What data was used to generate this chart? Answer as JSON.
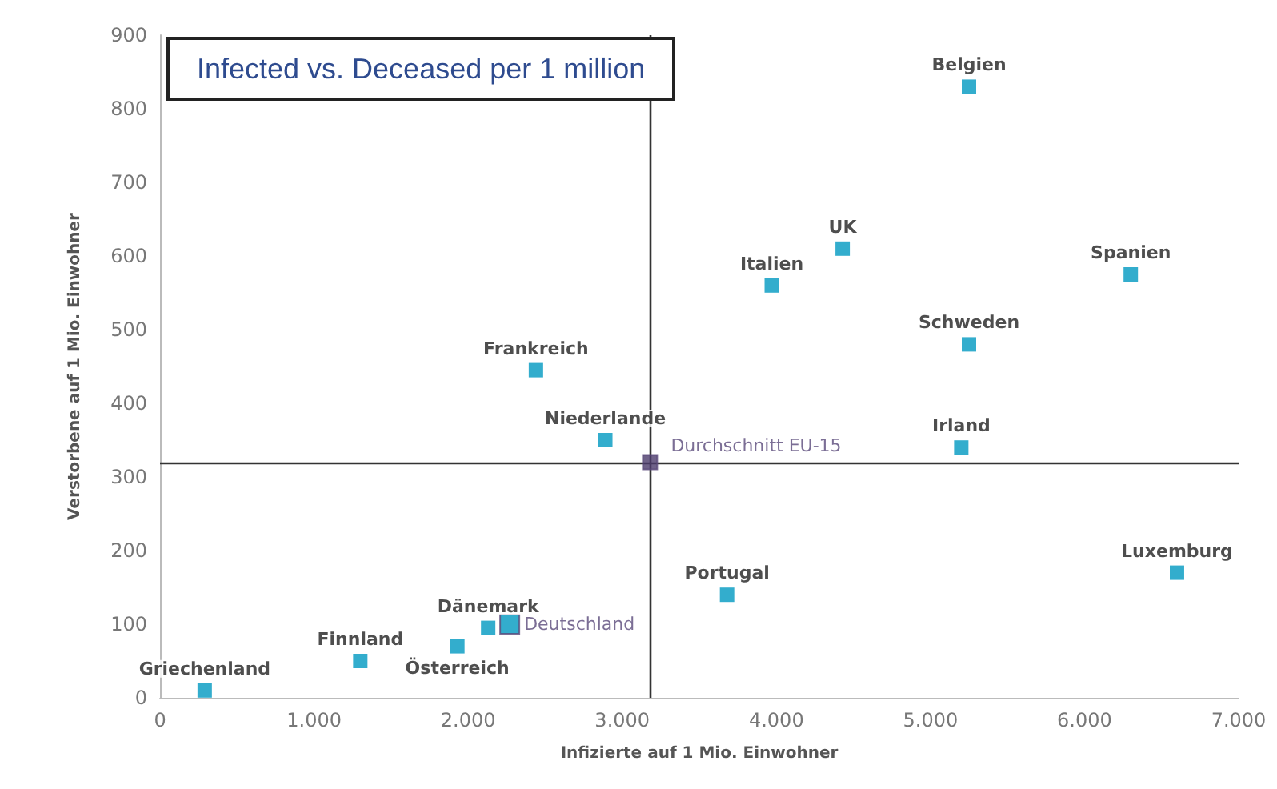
{
  "chart_data": {
    "type": "scatter",
    "title": "Infected vs. Deceased per 1 million",
    "xlabel": "Infizierte auf 1 Mio. Einwohner",
    "ylabel": "Verstorbene auf 1 Mio. Einwohner",
    "series": [
      {
        "color": "#0099c0",
        "x": [
          5250,
          4430,
          3970,
          6300,
          5250,
          2440,
          2890,
          5200,
          3680,
          6600,
          290,
          1300,
          1930,
          2130
        ],
        "values": [
          830,
          610,
          560,
          575,
          480,
          445,
          350,
          340,
          140,
          170,
          10,
          50,
          70,
          95
        ]
      },
      {
        "color": "#0099c0",
        "x": [
          2270
        ],
        "values": [
          100
        ]
      },
      {
        "color": "#4b3b6b",
        "x": [
          3180
        ],
        "values": [
          320
        ]
      }
    ],
    "annotations": [
      {
        "text": "Belgien",
        "x": 5250,
        "y": 830
      },
      {
        "text": "UK",
        "x": 4430,
        "y": 610
      },
      {
        "text": "Italien",
        "x": 3970,
        "y": 560
      },
      {
        "text": "Spanien",
        "x": 6300,
        "y": 575
      },
      {
        "text": "Schweden",
        "x": 5250,
        "y": 480
      },
      {
        "text": "Frankreich",
        "x": 2440,
        "y": 445
      },
      {
        "text": "Niederlande",
        "x": 2890,
        "y": 350
      },
      {
        "text": "Irland",
        "x": 5200,
        "y": 340
      },
      {
        "text": "Portugal",
        "x": 3680,
        "y": 140
      },
      {
        "text": "Luxemburg",
        "x": 6600,
        "y": 170
      },
      {
        "text": "Griechenland",
        "x": 290,
        "y": 10
      },
      {
        "text": "Finnland",
        "x": 1300,
        "y": 50
      },
      {
        "text": "Österreich",
        "x": 1930,
        "y": 70
      },
      {
        "text": "Dänemark",
        "x": 2130,
        "y": 95
      },
      {
        "text": "Deutschland",
        "x": 2270,
        "y": 100
      },
      {
        "text": "Durchschnitt EU-15",
        "x": 3180,
        "y": 320
      }
    ],
    "ref_lines": [
      {
        "axis": "x",
        "value": 3180,
        "color": "#333333"
      },
      {
        "axis": "y",
        "value": 320,
        "color": "#333333"
      }
    ],
    "xlim": [
      0,
      7000
    ],
    "xticks": [
      0,
      {
        "value": 1000,
        "label": "1.000"
      },
      {
        "value": 2000,
        "label": "2.000"
      },
      {
        "value": 3000,
        "label": "3.000"
      },
      {
        "value": 4000,
        "label": "4.000"
      },
      {
        "value": 5000,
        "label": "5.000"
      },
      {
        "value": 6000,
        "label": "6.000"
      },
      {
        "value": 7000,
        "label": "7.000"
      }
    ],
    "ylim": [
      0,
      900
    ],
    "yticks": [
      0,
      100,
      200,
      300,
      400,
      500,
      600,
      700,
      800,
      900
    ],
    "grid": false,
    "marker": "square"
  }
}
